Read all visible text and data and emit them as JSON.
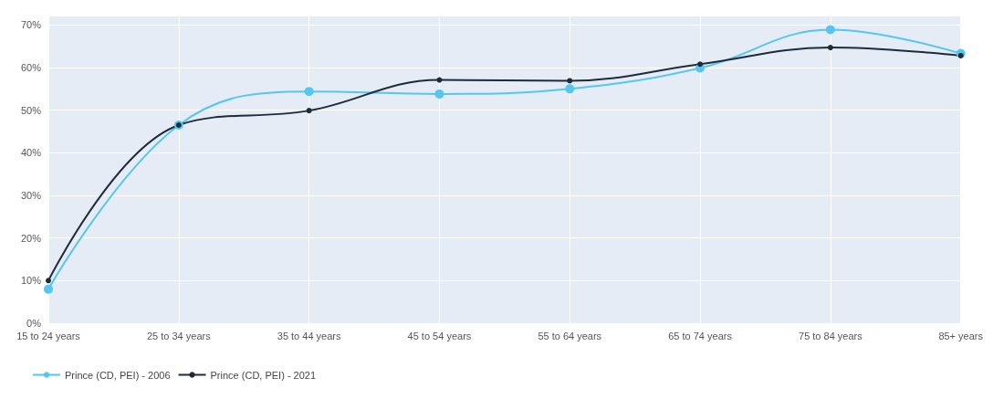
{
  "chart_data": {
    "type": "line",
    "categories": [
      "15 to 24 years",
      "25 to 34 years",
      "35 to 44 years",
      "45 to 54 years",
      "55 to 64 years",
      "65 to 74 years",
      "75 to 84 years",
      "85+ years"
    ],
    "series": [
      {
        "name": "Prince (CD, PEI) - 2006",
        "color": "#55c6ef",
        "values": [
          8.0,
          46.5,
          54.4,
          53.8,
          55.0,
          59.9,
          68.9,
          63.3
        ]
      },
      {
        "name": "Prince (CD, PEI) - 2021",
        "color": "#1e2b3a",
        "values": [
          10.0,
          46.5,
          49.9,
          57.1,
          56.9,
          60.8,
          64.7,
          62.8
        ]
      }
    ],
    "ylim": [
      0,
      72
    ],
    "yticks": [
      {
        "value": 0,
        "label": "0%"
      },
      {
        "value": 10,
        "label": "10%"
      },
      {
        "value": 20,
        "label": "20%"
      },
      {
        "value": 30,
        "label": "30%"
      },
      {
        "value": 40,
        "label": "40%"
      },
      {
        "value": 50,
        "label": "50%"
      },
      {
        "value": 60,
        "label": "60%"
      },
      {
        "value": 70,
        "label": "70%"
      }
    ],
    "grid": true,
    "legend": "bottom left",
    "marker": "circle",
    "line_style": "solid"
  }
}
